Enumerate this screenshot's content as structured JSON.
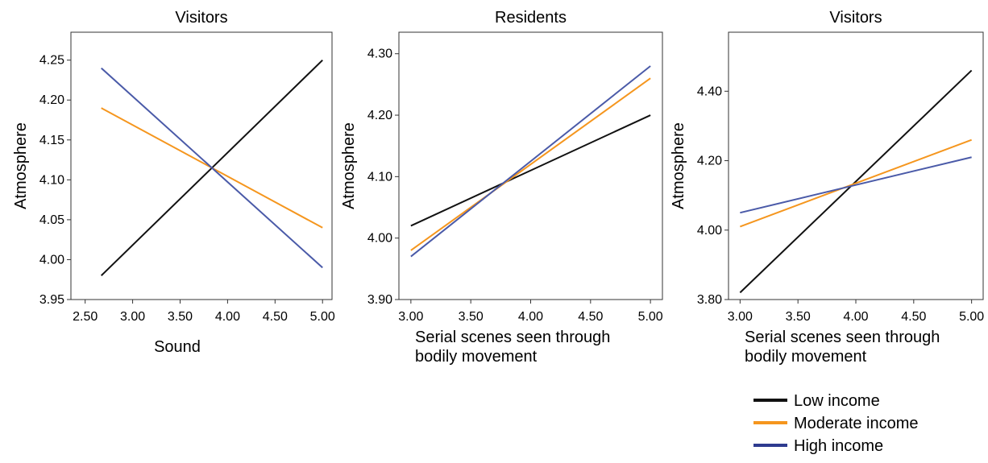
{
  "chart_data": [
    {
      "type": "line",
      "title": "Visitors",
      "xlabel": "Sound",
      "ylabel": "Atmosphere",
      "xlim": [
        2.35,
        5.1
      ],
      "ylim": [
        3.95,
        4.285
      ],
      "xticks": [
        "2.50",
        "3.00",
        "3.50",
        "4.00",
        "4.50",
        "5.00"
      ],
      "yticks": [
        "3.95",
        "4.00",
        "4.05",
        "4.10",
        "4.15",
        "4.20",
        "4.25"
      ],
      "x": [
        2.67,
        5.0
      ],
      "series": [
        {
          "name": "Low income",
          "values": [
            3.98,
            4.25
          ]
        },
        {
          "name": "Moderate income",
          "values": [
            4.19,
            4.04
          ]
        },
        {
          "name": "High income",
          "values": [
            4.24,
            3.99
          ]
        }
      ]
    },
    {
      "type": "line",
      "title": "Residents",
      "xlabel": "Serial scenes seen through bodily movement",
      "ylabel": "Atmosphere",
      "xlim": [
        2.9,
        5.1
      ],
      "ylim": [
        3.9,
        4.335
      ],
      "xticks": [
        "3.00",
        "3.50",
        "4.00",
        "4.50",
        "5.00"
      ],
      "yticks": [
        "3.90",
        "4.00",
        "4.10",
        "4.20",
        "4.30"
      ],
      "x": [
        3.0,
        5.0
      ],
      "series": [
        {
          "name": "Low income",
          "values": [
            4.02,
            4.2
          ]
        },
        {
          "name": "Moderate income",
          "values": [
            3.98,
            4.26
          ]
        },
        {
          "name": "High income",
          "values": [
            3.97,
            4.28
          ]
        }
      ]
    },
    {
      "type": "line",
      "title": "Visitors",
      "xlabel": "Serial scenes seen through bodily movement",
      "ylabel": "Atmosphere",
      "xlim": [
        2.9,
        5.1
      ],
      "ylim": [
        3.8,
        4.57
      ],
      "xticks": [
        "3.00",
        "3.50",
        "4.00",
        "4.50",
        "5.00"
      ],
      "yticks": [
        "3.80",
        "4.00",
        "4.20",
        "4.40"
      ],
      "x": [
        3.0,
        5.0
      ],
      "series": [
        {
          "name": "Low income",
          "values": [
            3.82,
            4.46
          ]
        },
        {
          "name": "Moderate income",
          "values": [
            4.01,
            4.26
          ]
        },
        {
          "name": "High income",
          "values": [
            4.05,
            4.21
          ]
        }
      ]
    }
  ],
  "legend": {
    "position": "bottom-right",
    "items": [
      {
        "label": "Low income",
        "color": "#111111"
      },
      {
        "label": "Moderate income",
        "color": "#f5961e"
      },
      {
        "label": "High income",
        "color": "#2e3b8f"
      }
    ]
  },
  "series_colors": [
    "#111111",
    "#f5961e",
    "#4a5aa8"
  ]
}
